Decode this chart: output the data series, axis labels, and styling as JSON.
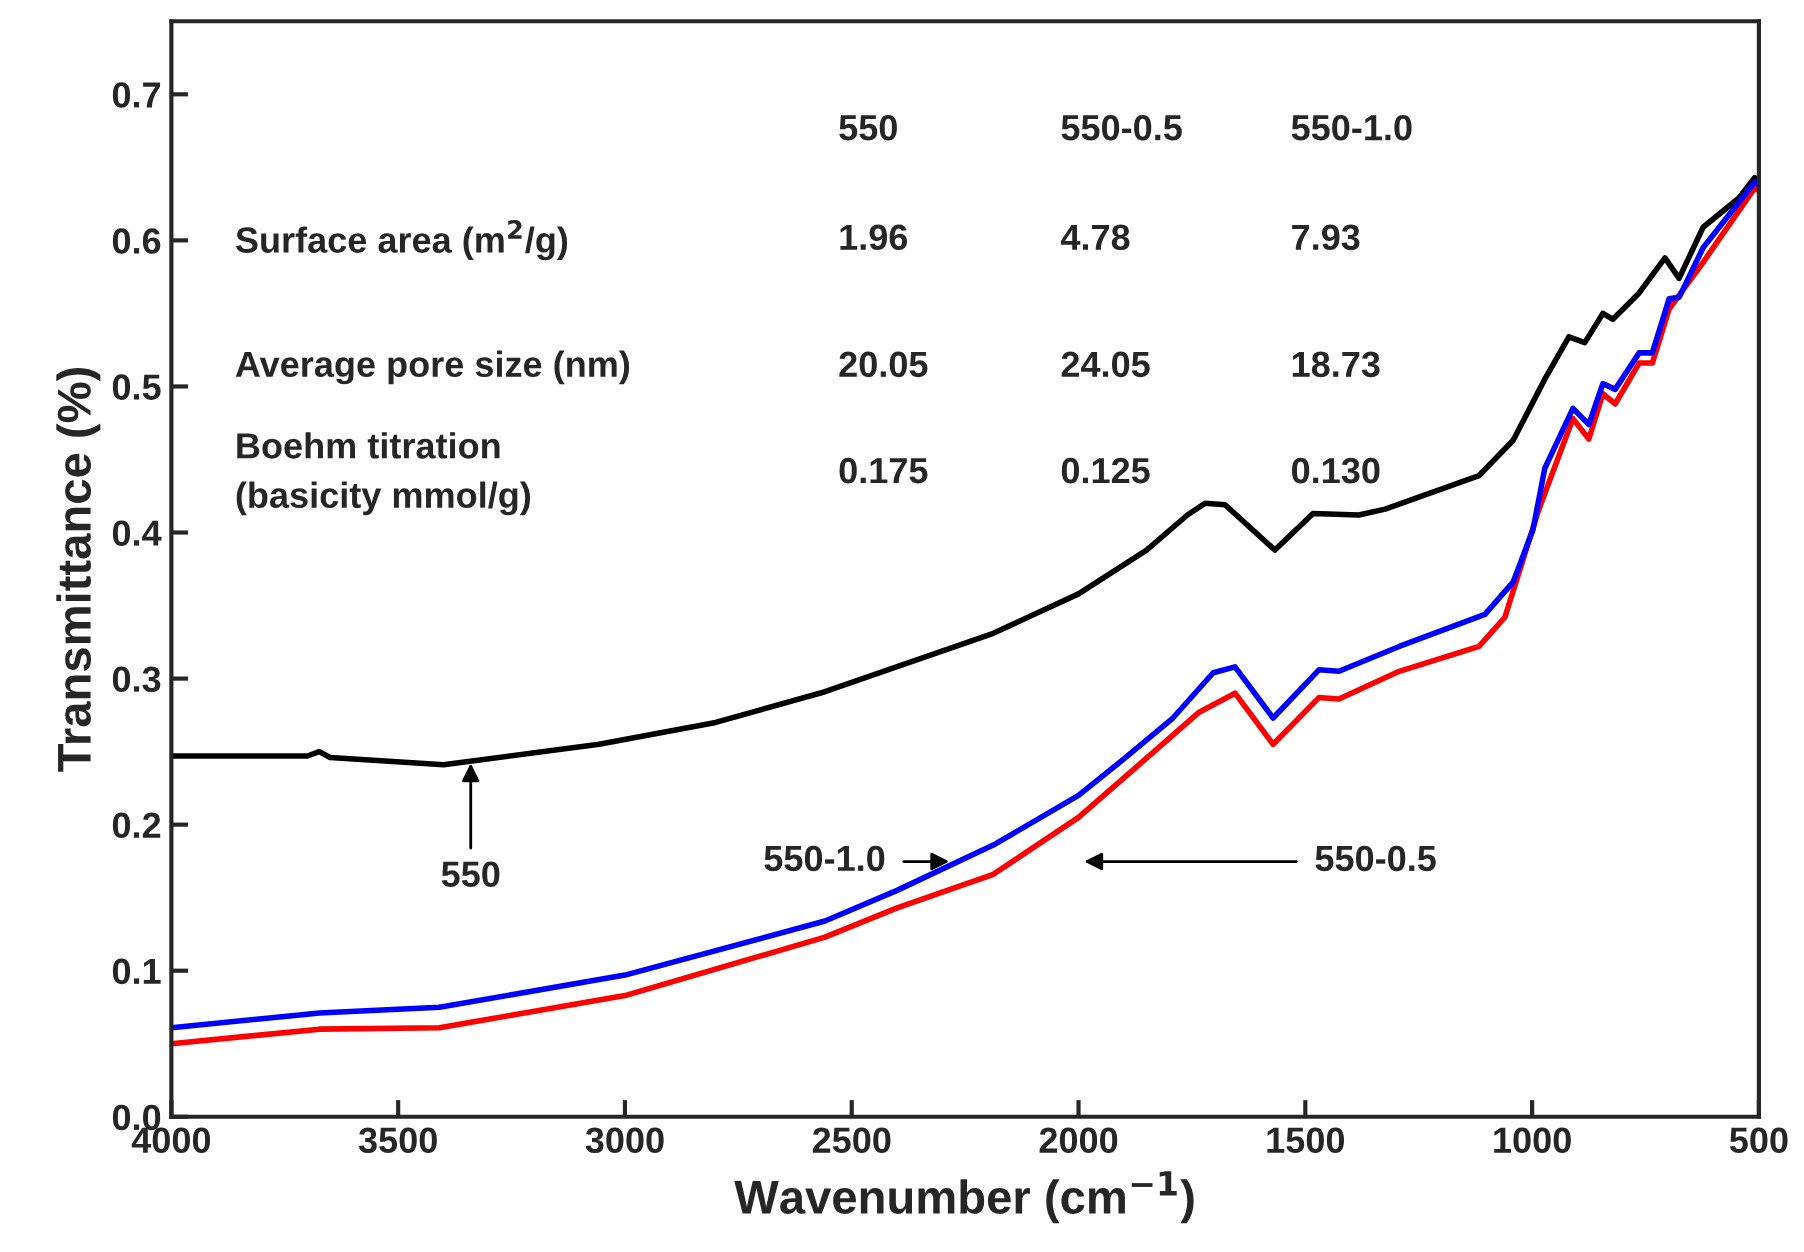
{
  "chart_data": {
    "type": "line",
    "xlabel": "Wavenumber (cm$^{−1}$)",
    "ylabel": "Transmittance (%)",
    "xlim": [
      4000,
      500
    ],
    "ylim": [
      0,
      0.75
    ],
    "xticks": [
      4000,
      3500,
      3000,
      2500,
      2000,
      1500,
      1000,
      500
    ],
    "yticks": [
      {
        "value": 0,
        "label": "0.0"
      },
      0.1,
      0.2,
      0.3,
      0.4,
      0.5,
      0.6,
      0.7
    ],
    "grid": false,
    "legend": false,
    "series": [
      {
        "color": "#000000",
        "x": [
          4000,
          3700,
          3674,
          3650,
          3400,
          3057,
          2800,
          2559,
          2188,
          2000,
          1850,
          1760,
          1721,
          1677,
          1567,
          1483,
          1382,
          1324,
          1117,
          1042,
          972,
          919,
          884,
          844,
          822,
          764,
          707,
          676,
          623,
          544,
          509,
          500
        ],
        "values": [
          0.247,
          0.247,
          0.25,
          0.246,
          0.241,
          0.255,
          0.27,
          0.291,
          0.331,
          0.358,
          0.388,
          0.412,
          0.42,
          0.419,
          0.388,
          0.413,
          0.412,
          0.416,
          0.439,
          0.463,
          0.505,
          0.534,
          0.53,
          0.55,
          0.546,
          0.564,
          0.588,
          0.574,
          0.609,
          0.629,
          0.643,
          0.64
        ]
      },
      {
        "color": "#ff0000",
        "x": [
          4000,
          3674,
          3409,
          3000,
          2559,
          2400,
          2188,
          2000,
          1900,
          1734,
          1655,
          1571,
          1470,
          1426,
          1293,
          1117,
          1060,
          985,
          910,
          875,
          844,
          817,
          764,
          735,
          698,
          623,
          509,
          500
        ],
        "values": [
          0.05,
          0.06,
          0.061,
          0.083,
          0.123,
          0.143,
          0.166,
          0.205,
          0.232,
          0.277,
          0.29,
          0.255,
          0.287,
          0.286,
          0.305,
          0.322,
          0.342,
          0.416,
          0.478,
          0.464,
          0.495,
          0.488,
          0.516,
          0.516,
          0.553,
          0.585,
          0.636,
          0.634
        ]
      },
      {
        "color": "#0000ff",
        "x": [
          4000,
          3674,
          3409,
          3000,
          2559,
          2400,
          2188,
          2000,
          1900,
          1792,
          1703,
          1655,
          1571,
          1470,
          1426,
          1293,
          1104,
          1042,
          998,
          972,
          910,
          875,
          844,
          817,
          764,
          735,
          698,
          676,
          623,
          509,
          500
        ],
        "values": [
          0.061,
          0.071,
          0.075,
          0.097,
          0.134,
          0.155,
          0.186,
          0.22,
          0.245,
          0.273,
          0.304,
          0.308,
          0.273,
          0.306,
          0.305,
          0.322,
          0.344,
          0.366,
          0.402,
          0.444,
          0.485,
          0.474,
          0.502,
          0.498,
          0.523,
          0.523,
          0.56,
          0.561,
          0.595,
          0.64,
          0.638
        ]
      }
    ],
    "annotations": [
      {
        "text": "550",
        "x": 3340,
        "y": 0.242
      },
      "550-1.0",
      "550-0.5",
      "550",
      "550-0.5",
      "550-1.0",
      "Surface area (m$^{2}$/g)",
      "1.96",
      "4.78",
      "7.93",
      "Average pore size (nm)",
      "20.05",
      "24.05",
      "18.73",
      "Boehm titration\n(basicity mmol/g)",
      "0.175",
      "0.125",
      "0.130"
    ]
  }
}
